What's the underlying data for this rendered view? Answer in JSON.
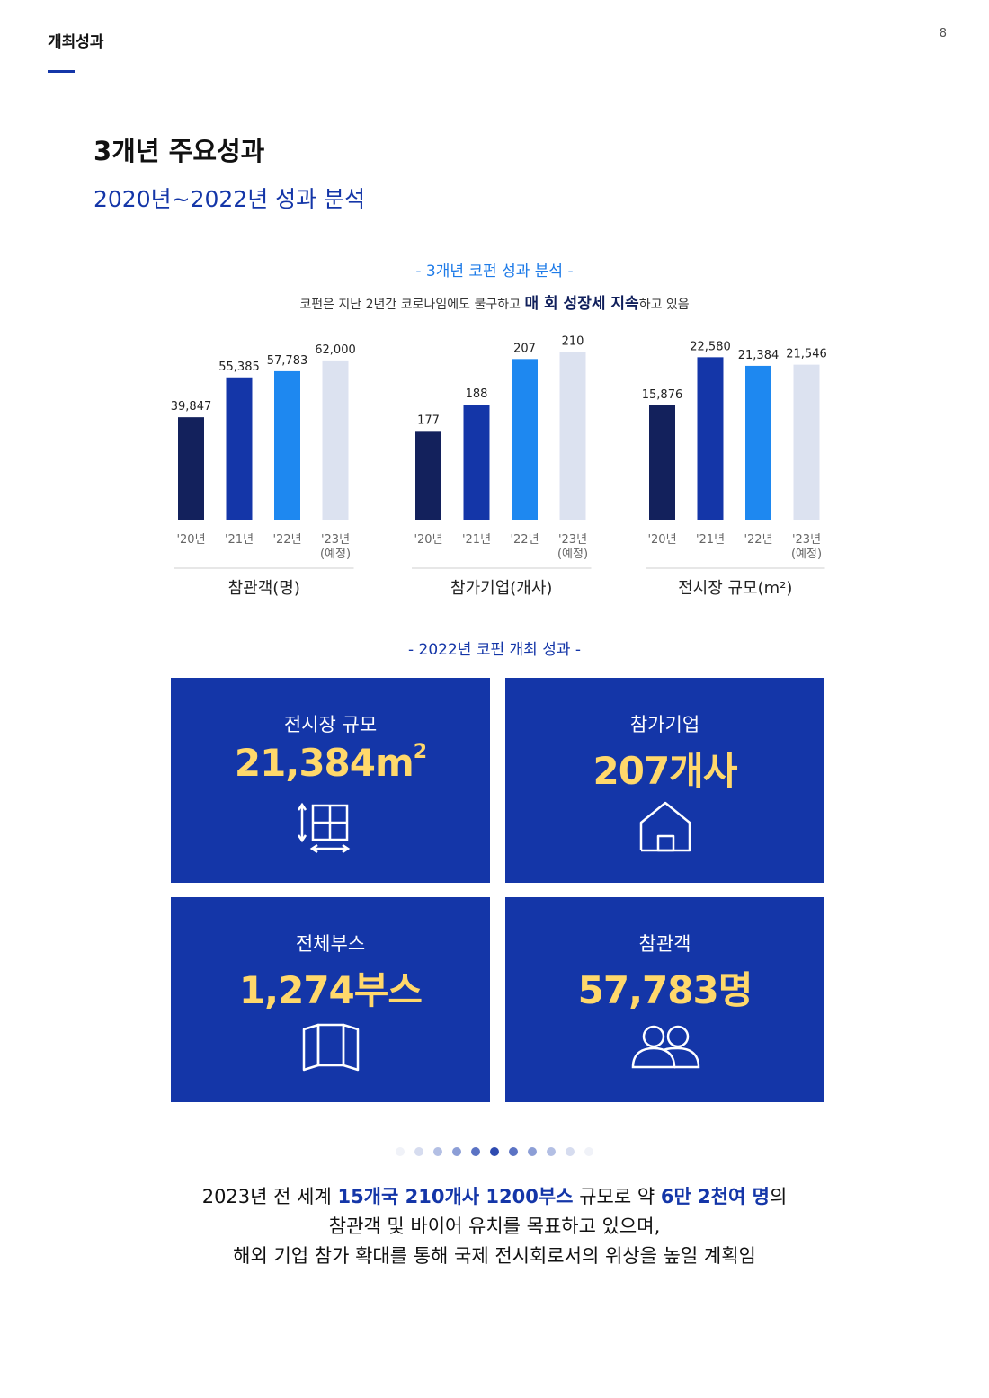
{
  "header": {
    "section": "개최성과",
    "page_number": "8"
  },
  "title": "3개년 주요성과",
  "subtitle": "2020년~2022년 성과 분석",
  "analysis": {
    "caption": "- 3개년 코펀 성과 분석 -",
    "desc_pre": "코펀은 지난 2년간 코로나임에도 불구하고 ",
    "desc_em": "매 회 성장세 지속",
    "desc_post": "하고 있음"
  },
  "colors": {
    "navy": "#13215c",
    "blue": "#1436a8",
    "bright": "#1e88f0",
    "pale": "#dce2f0",
    "accent_yellow": "#ffd86b"
  },
  "chart_data": [
    {
      "type": "bar",
      "title": "참관객(명)",
      "categories": [
        "'20년",
        "'21년",
        "'22년",
        "'23년"
      ],
      "category_notes": [
        "",
        "",
        "",
        "(예정)"
      ],
      "values": [
        39847,
        55385,
        57783,
        62000
      ],
      "labels": [
        "39,847",
        "55,385",
        "57,783",
        "62,000"
      ],
      "ylim": [
        0,
        70000
      ]
    },
    {
      "type": "bar",
      "title": "참가기업(개사)",
      "categories": [
        "'20년",
        "'21년",
        "'22년",
        "'23년"
      ],
      "category_notes": [
        "",
        "",
        "",
        "(예정)"
      ],
      "values": [
        177,
        188,
        207,
        210
      ],
      "labels": [
        "177",
        "188",
        "207",
        "210"
      ],
      "ylim": [
        140,
        215
      ]
    },
    {
      "type": "bar",
      "title": "전시장 규모(m²)",
      "categories": [
        "'20년",
        "'21년",
        "'22년",
        "'23년"
      ],
      "category_notes": [
        "",
        "",
        "",
        "(예정)"
      ],
      "values": [
        15876,
        22580,
        21384,
        21546
      ],
      "labels": [
        "15,876",
        "22,580",
        "21,384",
        "21,546"
      ],
      "ylim": [
        0,
        25000
      ]
    }
  ],
  "results_caption": "- 2022년 코펀 개최 성과 -",
  "tiles": [
    {
      "label": "전시장 규모",
      "value": "21,384m",
      "value_sup": "2",
      "icon": "floor-plan-icon"
    },
    {
      "label": "참가기업",
      "value": "207개사",
      "value_sup": "",
      "icon": "house-icon"
    },
    {
      "label": "전체부스",
      "value": "1,274부스",
      "value_sup": "",
      "icon": "booth-icon"
    },
    {
      "label": "참관객",
      "value": "57,783명",
      "value_sup": "",
      "icon": "people-icon"
    }
  ],
  "summary": {
    "l1_a": "2023년 전 세계 ",
    "l1_b": "15개국 210개사 1200부스",
    "l1_c": " 규모로 약 ",
    "l1_d": "6만 2천여 명",
    "l1_e": "의",
    "l2": "참관객 및 바이어 유치를 목표하고 있으며,",
    "l3": "해외 기업 참가 확대를 통해 국제 전시회로서의 위상을 높일 계획임"
  }
}
